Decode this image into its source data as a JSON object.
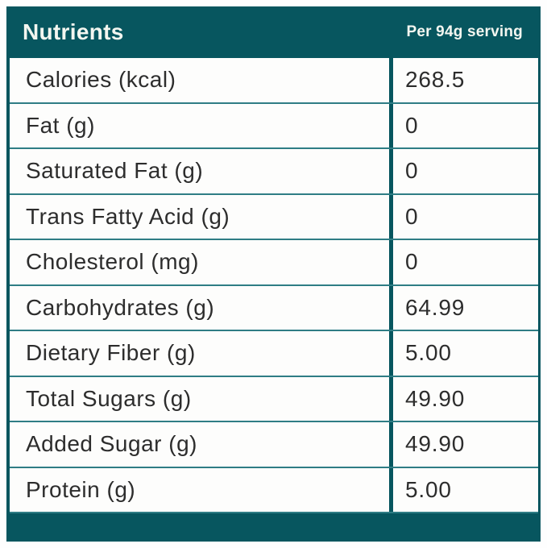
{
  "header": {
    "title": "Nutrients",
    "serving_label": "Per 94g serving"
  },
  "table": {
    "columns": [
      "Nutrients",
      "Per 94g serving"
    ],
    "rows": [
      {
        "label": "Calories (kcal)",
        "value": "268.5"
      },
      {
        "label": "Fat (g)",
        "value": "0"
      },
      {
        "label": "Saturated Fat (g)",
        "value": "0"
      },
      {
        "label": "Trans Fatty Acid (g)",
        "value": "0"
      },
      {
        "label": "Cholesterol (mg)",
        "value": "0"
      },
      {
        "label": "Carbohydrates (g)",
        "value": "64.99"
      },
      {
        "label": "Dietary Fiber (g)",
        "value": "5.00"
      },
      {
        "label": "Total Sugars (g)",
        "value": "49.90"
      },
      {
        "label": "Added Sugar (g)",
        "value": "49.90"
      },
      {
        "label": "Protein (g)",
        "value": "5.00"
      }
    ]
  },
  "colors": {
    "teal": "#07565f",
    "row_separator": "#2f7d85",
    "body_text": "#2d2d2d",
    "header_text": "#f3f6f0",
    "row_background": "#fdfdfc"
  }
}
